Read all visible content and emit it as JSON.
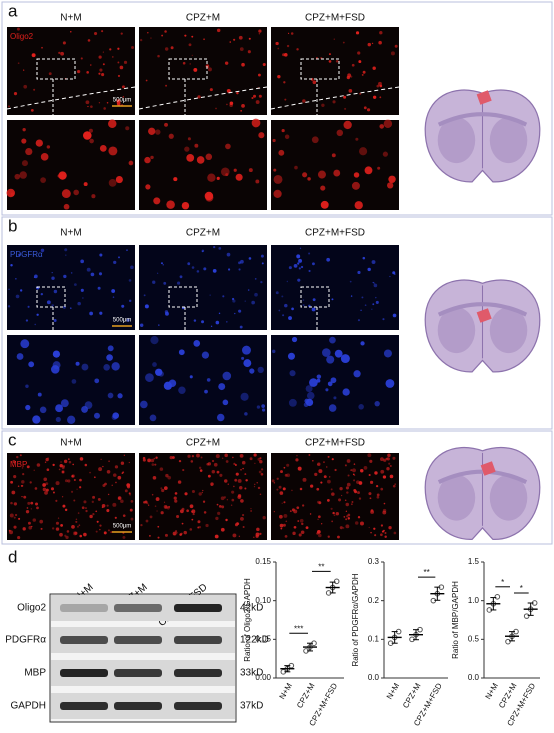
{
  "panels": {
    "a": {
      "label": "a",
      "marker": "Oligo2",
      "columns": [
        "N+M",
        "CPZ+M",
        "CPZ+M+FSD"
      ],
      "scale_bar": "500μm"
    },
    "b": {
      "label": "b",
      "marker": "PDGFRα",
      "columns": [
        "N+M",
        "CPZ+M",
        "CPZ+M+FSD"
      ],
      "scale_bar": "500μm"
    },
    "c": {
      "label": "c",
      "marker": "MBP",
      "columns": [
        "N+M",
        "CPZ+M",
        "CPZ+M+FSD"
      ],
      "scale_bar": "500μm"
    },
    "d": {
      "label": "d",
      "blot": {
        "columns": [
          "N+M",
          "CPZ+M",
          "CPZ+M+FSD"
        ],
        "rows": [
          {
            "protein": "Oligo2",
            "size": "42kD"
          },
          {
            "protein": "PDGFRα",
            "size": "122kD"
          },
          {
            "protein": "MBP",
            "size": "33kD"
          },
          {
            "protein": "GAPDH",
            "size": "37kD"
          }
        ]
      }
    }
  },
  "chart_data": [
    {
      "type": "dotplot",
      "ylabel": "Ratio of Oligo2/GAPDH",
      "categories": [
        "N+M",
        "CPZ+M",
        "CPZ+M+FSD"
      ],
      "points": [
        [
          0.008,
          0.012,
          0.016
        ],
        [
          0.035,
          0.04,
          0.045
        ],
        [
          0.11,
          0.117,
          0.125
        ]
      ],
      "values": [
        0.012,
        0.04,
        0.117
      ],
      "errors": [
        0.004,
        0.005,
        0.007
      ],
      "color": "#555555",
      "ylim": [
        0,
        0.15
      ],
      "yticks": [
        {
          "value": 0,
          "label": "0.00"
        },
        {
          "value": 0.05,
          "label": "0.05"
        },
        {
          "value": 0.1,
          "label": "0.10"
        },
        {
          "value": 0.15,
          "label": "0.15"
        }
      ],
      "annotations": [
        {
          "pair": [
            0,
            1
          ],
          "label": "***"
        },
        {
          "pair": [
            1,
            2
          ],
          "label": "**"
        }
      ]
    },
    {
      "type": "dotplot",
      "ylabel": "Ratio of PDGFRα/GAPDH",
      "categories": [
        "N+M",
        "CPZ+M",
        "CPZ+M+FSD"
      ],
      "points": [
        [
          0.09,
          0.105,
          0.12
        ],
        [
          0.1,
          0.112,
          0.125
        ],
        [
          0.2,
          0.218,
          0.235
        ]
      ],
      "values": [
        0.105,
        0.112,
        0.218
      ],
      "errors": [
        0.015,
        0.013,
        0.017
      ],
      "color": "#555555",
      "ylim": [
        0,
        0.3
      ],
      "yticks": [
        {
          "value": 0,
          "label": "0.0"
        },
        0.1,
        0.2,
        0.3
      ],
      "annotations": [
        {
          "pair": [
            1,
            2
          ],
          "label": "**"
        }
      ]
    },
    {
      "type": "dotplot",
      "ylabel": "Ratio of MBP/GAPDH",
      "categories": [
        "N+M",
        "CPZ+M",
        "CPZ+M+FSD"
      ],
      "points": [
        [
          0.88,
          0.96,
          1.05
        ],
        [
          0.47,
          0.54,
          0.6
        ],
        [
          0.8,
          0.89,
          0.97
        ]
      ],
      "values": [
        0.96,
        0.54,
        0.89
      ],
      "errors": [
        0.08,
        0.06,
        0.08
      ],
      "color": "#555555",
      "ylim": [
        0,
        1.5
      ],
      "yticks": [
        {
          "value": 0,
          "label": "0.0"
        },
        0.5,
        {
          "value": 1,
          "label": "1.0"
        },
        1.5
      ],
      "annotations": [
        {
          "pair": [
            0,
            1
          ],
          "label": "*"
        },
        {
          "pair": [
            1,
            2
          ],
          "label": "*"
        }
      ]
    }
  ]
}
